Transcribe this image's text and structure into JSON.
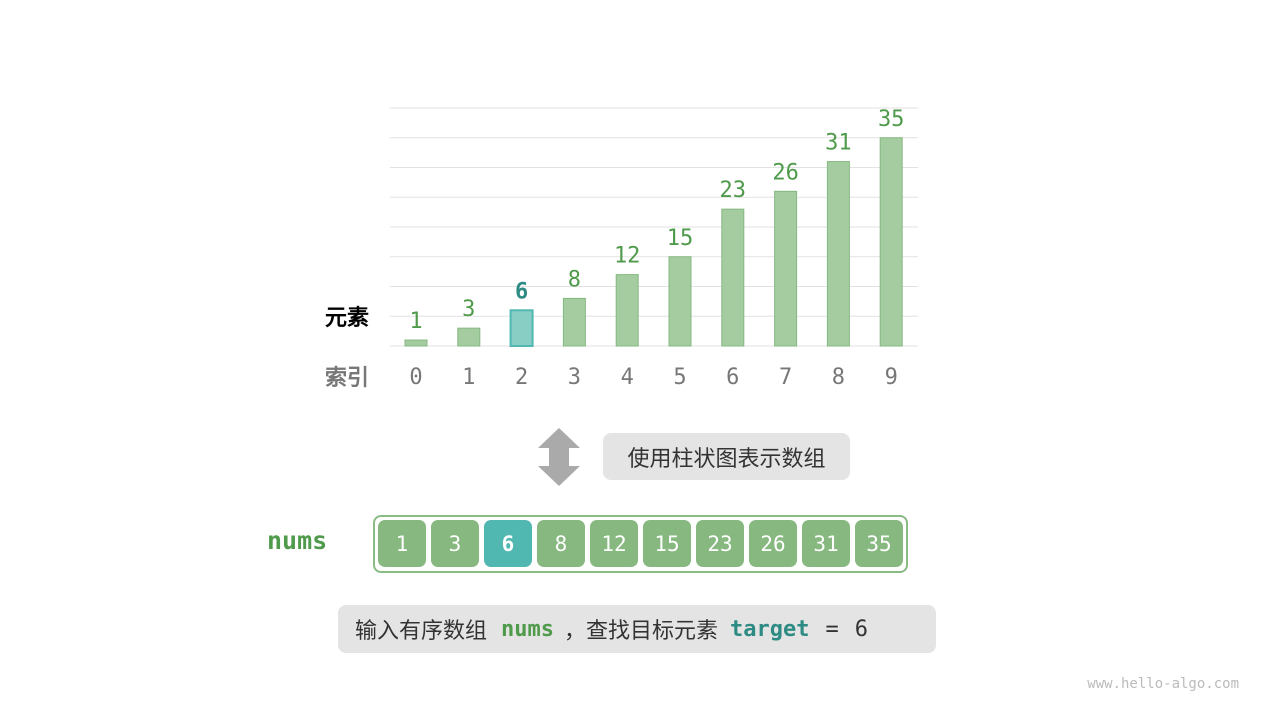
{
  "chart_data": {
    "type": "bar",
    "categories": [
      "0",
      "1",
      "2",
      "3",
      "4",
      "5",
      "6",
      "7",
      "8",
      "9"
    ],
    "values": [
      1,
      3,
      6,
      8,
      12,
      15,
      23,
      26,
      31,
      35
    ],
    "highlight_index": 2,
    "ylim": [
      0,
      40
    ],
    "grid": true,
    "row_label_values": "元素",
    "row_label_index": "索引"
  },
  "colors": {
    "bar": "#a4cca0",
    "bar_border": "#86b880",
    "highlight": "#50b8b0",
    "highlight_text": "#2e8b84",
    "green_text": "#4f9a4b",
    "index_text": "#777777"
  },
  "arrow_icon": "double-vertical-arrow",
  "caption": "使用柱状图表示数组",
  "array": {
    "name": "nums",
    "values": [
      "1",
      "3",
      "6",
      "8",
      "12",
      "15",
      "23",
      "26",
      "31",
      "35"
    ],
    "highlight_index": 2
  },
  "prompt": {
    "text1": "输入有序数组",
    "var1": "nums",
    "text2": "，查找目标元素",
    "var2": "target",
    "eq": "=",
    "value": "6"
  },
  "footer": "www.hello-algo.com"
}
